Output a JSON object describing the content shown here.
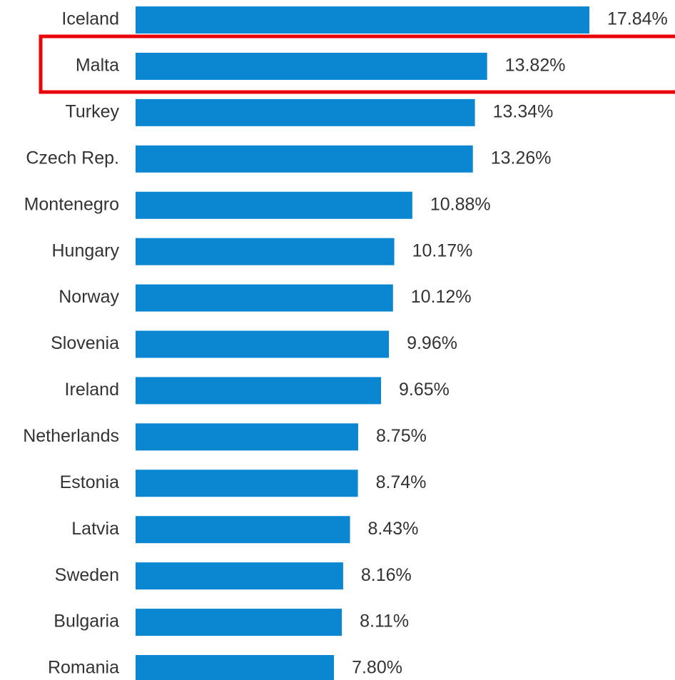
{
  "chart_data": {
    "type": "barh",
    "categories": [
      "Iceland",
      "Malta",
      "Turkey",
      "Czech Rep.",
      "Montenegro",
      "Hungary",
      "Norway",
      "Slovenia",
      "Ireland",
      "Netherlands",
      "Estonia",
      "Latvia",
      "Sweden",
      "Bulgaria",
      "Romania"
    ],
    "values": [
      17.84,
      13.82,
      13.34,
      13.26,
      10.88,
      10.17,
      10.12,
      9.96,
      9.65,
      8.75,
      8.74,
      8.43,
      8.16,
      8.11,
      7.8
    ],
    "value_labels": [
      "17.84%",
      "13.82%",
      "13.34%",
      "13.26%",
      "10.88%",
      "10.17%",
      "10.12%",
      "9.96%",
      "9.65%",
      "8.75%",
      "8.74%",
      "8.43%",
      "8.16%",
      "8.11%",
      "7.80%"
    ],
    "color": "#0b86d1"
  }
}
